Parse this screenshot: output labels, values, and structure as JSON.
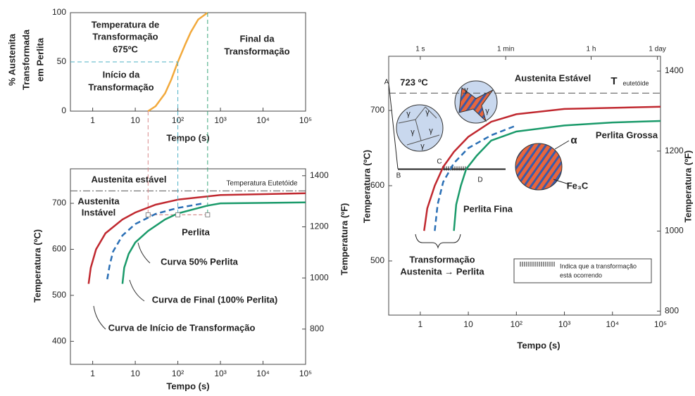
{
  "chart_data": [
    {
      "type": "line",
      "ylabel": [
        "% Austenita",
        "Transformada",
        "em Perlita"
      ],
      "xlabel": "Tempo (s)",
      "x_log": true,
      "xlim": [
        0.3,
        100000
      ],
      "ylim": [
        0,
        100
      ],
      "xticks": [
        1,
        10,
        {
          "value": 100,
          "label": "10²"
        },
        {
          "value": 1000,
          "label": "10³"
        },
        {
          "value": 10000,
          "label": "10⁴"
        },
        {
          "value": 100000,
          "label": "10⁵"
        }
      ],
      "yticks": [
        0,
        50,
        100
      ],
      "series": [
        {
          "color": "#f2a93b",
          "x": [
            20,
            30,
            50,
            70,
            100,
            150,
            200,
            300,
            500
          ],
          "values": [
            0,
            5,
            18,
            32,
            50,
            68,
            80,
            93,
            100
          ]
        }
      ],
      "annotations": [
        [
          "Temperatura de",
          "Transformação",
          "675ºC"
        ],
        [
          "Final da",
          "Transformação"
        ],
        [
          "Início da",
          "Transformação"
        ]
      ]
    },
    {
      "type": "line",
      "ylabel": "Temperatura (ºC)",
      "y2label": "Temperatura (ºF)",
      "xlabel": "Tempo (s)",
      "x_log": true,
      "xlim": [
        0.3,
        100000
      ],
      "ylim": [
        350,
        775
      ],
      "y2lim": [
        662,
        1427
      ],
      "xticks": [
        1,
        10,
        {
          "value": 100,
          "label": "10²"
        },
        {
          "value": 1000,
          "label": "10³"
        },
        {
          "value": 10000,
          "label": "10⁴"
        },
        {
          "value": 100000,
          "label": "10⁵"
        }
      ],
      "yticks": [
        400,
        500,
        600,
        700
      ],
      "y2ticks": [
        800,
        1000,
        1200,
        1400
      ],
      "eutectoid": 727,
      "isotherm": 675,
      "series": [
        {
          "name": "Curva de Início de Transformação",
          "color": "#c0282f",
          "x": [
            0.8,
            0.9,
            1.2,
            2,
            5,
            10,
            30,
            100,
            1000,
            100000
          ],
          "values": [
            525,
            560,
            600,
            635,
            665,
            680,
            697,
            708,
            718,
            722
          ]
        },
        {
          "name": "Curva 50% Perlita",
          "color": "#2a6fb5",
          "dashed": true,
          "x": [
            2.2,
            2.5,
            3,
            5,
            10,
            30,
            100,
            400
          ],
          "values": [
            535,
            565,
            595,
            630,
            655,
            677,
            690,
            700
          ]
        },
        {
          "name": "Curva de Final (100% Perlita)",
          "color": "#1a9a6a",
          "x": [
            5,
            5.5,
            7,
            10,
            20,
            50,
            100,
            500,
            1000,
            100000
          ],
          "values": [
            525,
            560,
            590,
            615,
            640,
            665,
            678,
            695,
            700,
            702
          ]
        }
      ],
      "annotations": [
        [
          "Austenita estável"
        ],
        [
          "Temperatura Eutetóide"
        ],
        [
          "Austenita",
          "Instável"
        ],
        [
          "Perlita"
        ]
      ]
    },
    {
      "type": "line",
      "ylabel": "Temperatura (ºC)",
      "y2label": "Temperatura (ºF)",
      "xlabel": "Tempo (s)",
      "x_log": true,
      "xlim": [
        0.22,
        100000
      ],
      "ylim": [
        428,
        772
      ],
      "y2lim": [
        790,
        1437
      ],
      "xticks": [
        1,
        10,
        {
          "value": 100,
          "label": "10²"
        },
        {
          "value": 1000,
          "label": "10³"
        },
        {
          "value": 10000,
          "label": "10⁴"
        },
        {
          "value": 100000,
          "label": "10⁵"
        }
      ],
      "x2ticks": [
        {
          "value": 1,
          "label": "1 s"
        },
        {
          "value": 60,
          "label": "1 min"
        },
        {
          "value": 3600,
          "label": "1 h"
        },
        {
          "value": 86400,
          "label": "1 day"
        }
      ],
      "yticks": [
        500,
        600,
        700
      ],
      "y2ticks": [
        800,
        1000,
        1200,
        1400
      ],
      "eutectoid": 723,
      "isotherm": 622,
      "series": [
        {
          "color": "#c0282f",
          "x": [
            1.2,
            1.4,
            2,
            3,
            5,
            10,
            30,
            100,
            1000,
            100000
          ],
          "values": [
            540,
            570,
            600,
            625,
            645,
            665,
            685,
            695,
            702,
            705
          ]
        },
        {
          "color": "#2a6fb5",
          "dashed": true,
          "x": [
            2,
            2.3,
            3,
            5,
            10,
            30,
            100
          ],
          "values": [
            540,
            575,
            605,
            630,
            650,
            667,
            680
          ]
        },
        {
          "color": "#1a9a6a",
          "x": [
            5,
            5.6,
            7,
            9,
            15,
            30,
            100,
            1000,
            10000,
            100000
          ],
          "values": [
            540,
            575,
            600,
            622,
            640,
            660,
            672,
            680,
            684,
            686
          ]
        }
      ],
      "annotations": [
        [
          "723 ºC"
        ],
        [
          "Austenita Estável"
        ],
        [
          "T"
        ],
        [
          "eutetóide"
        ],
        [
          "Perlita Grossa"
        ],
        [
          "α"
        ],
        [
          "Fe₃C"
        ],
        [
          "Perlita Fina"
        ],
        [
          "Transformação",
          "Austenita → Perlita"
        ],
        [
          "Indica que a transformação",
          "está ocorrendo"
        ],
        [
          "A"
        ],
        [
          "B"
        ],
        [
          "C"
        ],
        [
          "D"
        ],
        [
          "γ"
        ]
      ]
    }
  ]
}
